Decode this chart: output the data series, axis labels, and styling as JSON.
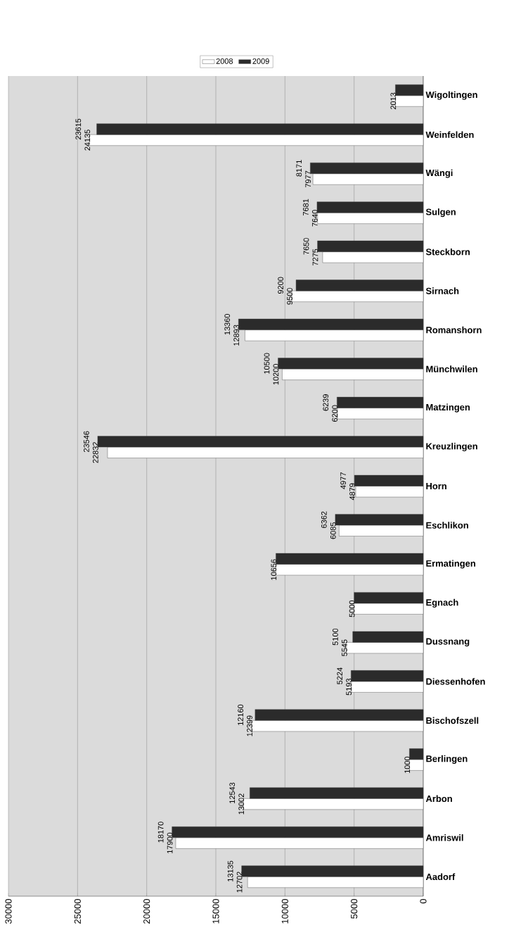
{
  "chart_data": {
    "type": "bar",
    "orientation": "horizontal",
    "categories": [
      "Wigoltingen",
      "Weinfelden",
      "Wängi",
      "Sulgen",
      "Steckborn",
      "Sirnach",
      "Romanshorn",
      "Münchwilen",
      "Matzingen",
      "Kreuzlingen",
      "Horn",
      "Eschlikon",
      "Ermatingen",
      "Egnach",
      "Dussnang",
      "Diessenhofen",
      "Bischofszell",
      "Berlingen",
      "Arbon",
      "Amriswil",
      "Aadorf"
    ],
    "series": [
      {
        "name": "2008",
        "color": "#ffffff",
        "values": [
          2013,
          24135,
          7977,
          7640,
          7275,
          9500,
          12893,
          10200,
          6200,
          22832,
          4879,
          6085,
          10656,
          5000,
          5545,
          5193,
          12399,
          1000,
          13002,
          17900,
          12702
        ],
        "value_labels": [
          "2013",
          "24135",
          "7977",
          "7640",
          "7275",
          "9500",
          "12893",
          "10200",
          "6200",
          "22832",
          "4879",
          "6085",
          "10656",
          "5000",
          "5545",
          "5193",
          "12399",
          "1000",
          "13002",
          "17900",
          "12702"
        ]
      },
      {
        "name": "2009",
        "color": "#2b2b2b",
        "values": [
          2013,
          23615,
          8171,
          7681,
          7650,
          9200,
          13360,
          10500,
          6239,
          23546,
          4977,
          6362,
          10656,
          5000,
          5100,
          5224,
          12160,
          1000,
          12543,
          18170,
          13135
        ],
        "value_labels": [
          null,
          "23615",
          "8171",
          "7681",
          "7650",
          "9200",
          "13360",
          "10500",
          "6239",
          "23546",
          "4977",
          "6362",
          null,
          null,
          "5100",
          "5224",
          "12160",
          null,
          "12543",
          "18170",
          "13135"
        ]
      }
    ],
    "xlim": [
      30000,
      0
    ],
    "xticks": [
      0,
      5000,
      10000,
      15000,
      20000,
      25000,
      30000
    ],
    "grid": "x",
    "legend": "top"
  }
}
